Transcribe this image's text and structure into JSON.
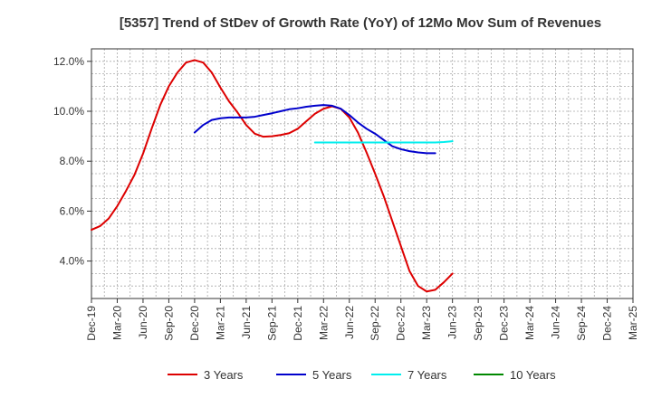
{
  "chart_data": {
    "type": "line",
    "title": "[5357]  Trend of StDev of Growth Rate (YoY) of 12Mo Mov Sum of Revenues",
    "xlabel": "",
    "ylabel": "",
    "ylim": [
      2.5,
      12.5
    ],
    "y_ticks": [
      4.0,
      6.0,
      8.0,
      10.0,
      12.0
    ],
    "y_tick_labels": [
      "4.0%",
      "6.0%",
      "8.0%",
      "10.0%",
      "12.0%"
    ],
    "x_tick_labels": [
      "Dec-19",
      "Mar-20",
      "Jun-20",
      "Sep-20",
      "Dec-20",
      "Mar-21",
      "Jun-21",
      "Sep-21",
      "Dec-21",
      "Mar-22",
      "Jun-22",
      "Sep-22",
      "Dec-22",
      "Mar-23",
      "Jun-23",
      "Sep-23",
      "Dec-23",
      "Mar-24",
      "Jun-24",
      "Sep-24",
      "Dec-24",
      "Mar-25"
    ],
    "grid": true,
    "legend_position": "bottom",
    "series": [
      {
        "name": "3 Years",
        "color": "#dd0000",
        "start_index": 0,
        "values": [
          5.25,
          5.4,
          5.7,
          6.2,
          6.8,
          7.45,
          8.3,
          9.3,
          10.25,
          11.0,
          11.55,
          11.95,
          12.05,
          11.95,
          11.55,
          10.95,
          10.4,
          9.95,
          9.45,
          9.1,
          8.98,
          9.0,
          9.05,
          9.12,
          9.3,
          9.6,
          9.9,
          10.1,
          10.2,
          10.1,
          9.75,
          9.15,
          8.35,
          7.5,
          6.6,
          5.6,
          4.6,
          3.6,
          3.0,
          2.78,
          2.85,
          3.15,
          3.5
        ]
      },
      {
        "name": "5 Years",
        "color": "#0000cc",
        "start_index": 12,
        "values": [
          9.15,
          9.45,
          9.65,
          9.72,
          9.75,
          9.75,
          9.75,
          9.78,
          9.85,
          9.92,
          10.0,
          10.08,
          10.12,
          10.18,
          10.22,
          10.25,
          10.22,
          10.1,
          9.85,
          9.55,
          9.3,
          9.1,
          8.85,
          8.6,
          8.48,
          8.4,
          8.35,
          8.32,
          8.32
        ]
      },
      {
        "name": "7 Years",
        "color": "#00eeee",
        "start_index": 26,
        "values": [
          8.75,
          8.75,
          8.75,
          8.75,
          8.75,
          8.75,
          8.75,
          8.75,
          8.75,
          8.75,
          8.75,
          8.75,
          8.75,
          8.75,
          8.75,
          8.77,
          8.8
        ]
      },
      {
        "name": "10 Years",
        "color": "#008800",
        "start_index": 42,
        "values": []
      }
    ],
    "x_points_per_tick": 3
  }
}
